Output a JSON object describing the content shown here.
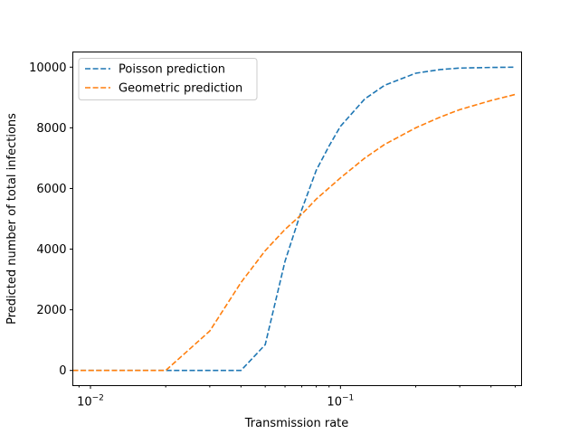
{
  "chart_data": {
    "type": "line",
    "title": "",
    "xlabel": "Transmission rate",
    "ylabel": "Predicted number of total infections",
    "xscale": "log",
    "xlim": [
      0.0085,
      0.53
    ],
    "ylim": [
      -500,
      10500
    ],
    "grid": false,
    "legend_position": "top-left",
    "x_major_ticks": [
      {
        "value": 0.01,
        "base": "10",
        "exponent": "−2"
      },
      {
        "value": 0.1,
        "base": "10",
        "exponent": "−1"
      }
    ],
    "x_minor_ticks": [
      0.009,
      0.02,
      0.03,
      0.04,
      0.05,
      0.06,
      0.07,
      0.08,
      0.09,
      0.2,
      0.3,
      0.4,
      0.5
    ],
    "y_ticks": [
      {
        "value": 0,
        "label": "0"
      },
      {
        "value": 2000,
        "label": "2000"
      },
      {
        "value": 4000,
        "label": "4000"
      },
      {
        "value": 6000,
        "label": "6000"
      },
      {
        "value": 8000,
        "label": "8000"
      },
      {
        "value": 10000,
        "label": "10000"
      }
    ],
    "series": [
      {
        "name": "Poisson prediction",
        "color": "#1f77b4",
        "style": "dashed",
        "points": [
          [
            0.0085,
            0
          ],
          [
            0.01,
            0
          ],
          [
            0.02,
            0
          ],
          [
            0.03,
            0
          ],
          [
            0.04,
            0
          ],
          [
            0.05,
            850
          ],
          [
            0.06,
            3600
          ],
          [
            0.07,
            5300
          ],
          [
            0.08,
            6600
          ],
          [
            0.09,
            7400
          ],
          [
            0.1,
            8050
          ],
          [
            0.125,
            8950
          ],
          [
            0.15,
            9400
          ],
          [
            0.2,
            9800
          ],
          [
            0.25,
            9920
          ],
          [
            0.3,
            9970
          ],
          [
            0.4,
            9990
          ],
          [
            0.5,
            10000
          ]
        ]
      },
      {
        "name": "Geometric prediction",
        "color": "#ff7f0e",
        "style": "dashed",
        "points": [
          [
            0.0085,
            0
          ],
          [
            0.01,
            0
          ],
          [
            0.015,
            0
          ],
          [
            0.02,
            0
          ],
          [
            0.03,
            1300
          ],
          [
            0.04,
            2900
          ],
          [
            0.05,
            3950
          ],
          [
            0.06,
            4650
          ],
          [
            0.07,
            5150
          ],
          [
            0.08,
            5650
          ],
          [
            0.1,
            6350
          ],
          [
            0.125,
            7000
          ],
          [
            0.15,
            7450
          ],
          [
            0.2,
            8000
          ],
          [
            0.25,
            8350
          ],
          [
            0.3,
            8600
          ],
          [
            0.4,
            8900
          ],
          [
            0.5,
            9100
          ]
        ]
      }
    ]
  }
}
